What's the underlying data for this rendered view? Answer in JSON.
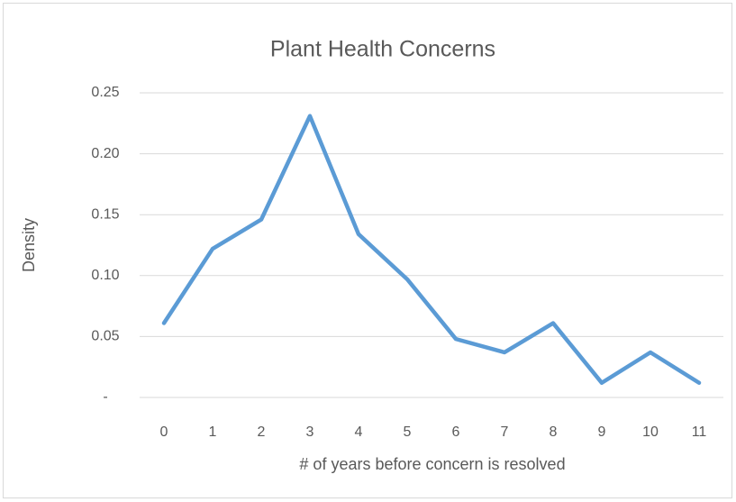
{
  "chart_data": {
    "type": "line",
    "title": "Plant Health Concerns",
    "xlabel": "# of years before concern is resolved",
    "ylabel": "Density",
    "categories": [
      "0",
      "1",
      "2",
      "3",
      "4",
      "5",
      "6",
      "7",
      "8",
      "9",
      "10",
      "11"
    ],
    "series": [
      {
        "name": "Density",
        "color": "#5b9bd5",
        "values": [
          0.061,
          0.122,
          0.146,
          0.231,
          0.134,
          0.097,
          0.048,
          0.037,
          0.061,
          0.012,
          0.037,
          0.012
        ]
      }
    ],
    "ylim": [
      0,
      0.25
    ],
    "yticks": [
      {
        "value": 0,
        "label": "-"
      },
      0.05,
      {
        "value": 0.1,
        "label": "0.10"
      },
      0.15,
      {
        "value": 0.2,
        "label": "0.20"
      },
      0.25
    ],
    "grid": true
  }
}
